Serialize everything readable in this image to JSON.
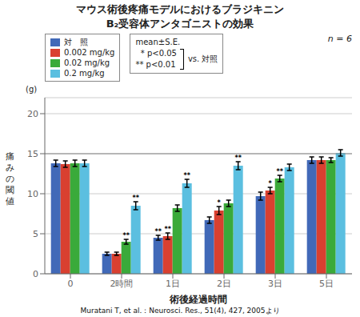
{
  "chart_data": {
    "type": "bar",
    "title": "マウス術後疼痛モデルにおけるブラジキニン",
    "subtitle": "B₂受容体アンタゴニストの効果",
    "xlabel": "術後経過時間",
    "ylabel": "痛みの閾値",
    "categories": [
      "0",
      "2時間",
      "1日",
      "2日",
      "3日",
      "5日"
    ],
    "series": [
      {
        "name": "対　照",
        "color": "#4169b8",
        "values": [
          13.8,
          2.5,
          4.5,
          6.7,
          9.7,
          14.2
        ],
        "errors": [
          0.4,
          0.2,
          0.3,
          0.4,
          0.5,
          0.4
        ],
        "significance": [
          null,
          null,
          "**",
          null,
          null,
          null
        ]
      },
      {
        "name": "0.002 mg/kg",
        "color": "#d94030",
        "values": [
          13.7,
          2.5,
          4.7,
          7.9,
          10.4,
          14.2
        ],
        "errors": [
          0.4,
          0.2,
          0.4,
          0.5,
          0.4,
          0.4
        ],
        "significance": [
          null,
          null,
          "**",
          "*",
          "*",
          null
        ]
      },
      {
        "name": "0.02 mg/kg",
        "color": "#3aaa3a",
        "values": [
          13.8,
          4.0,
          8.2,
          8.8,
          11.9,
          14.2
        ],
        "errors": [
          0.4,
          0.3,
          0.4,
          0.4,
          0.4,
          0.3
        ],
        "significance": [
          null,
          "**",
          null,
          null,
          "**",
          null
        ]
      },
      {
        "name": "0.2 mg/kg",
        "color": "#5bbfe0",
        "values": [
          13.8,
          8.5,
          11.3,
          13.5,
          13.3,
          15.1
        ],
        "errors": [
          0.4,
          0.5,
          0.5,
          0.5,
          0.4,
          0.4
        ],
        "significance": [
          null,
          "**",
          "**",
          "**",
          null,
          null
        ]
      }
    ],
    "ylim": [
      0,
      22
    ],
    "yticks": [
      0,
      5,
      10,
      15,
      20
    ],
    "grid": true,
    "legend": "upper left",
    "reference_lines": [
      15
    ],
    "annotations": [
      "(g)",
      "mean±S.E.",
      "  * p<0.05",
      "** p<0.01",
      "vs. 対照",
      "n = 6",
      "Muratani T, et al.：Neurosci. Res., 51(4), 427, 2005より"
    ]
  }
}
